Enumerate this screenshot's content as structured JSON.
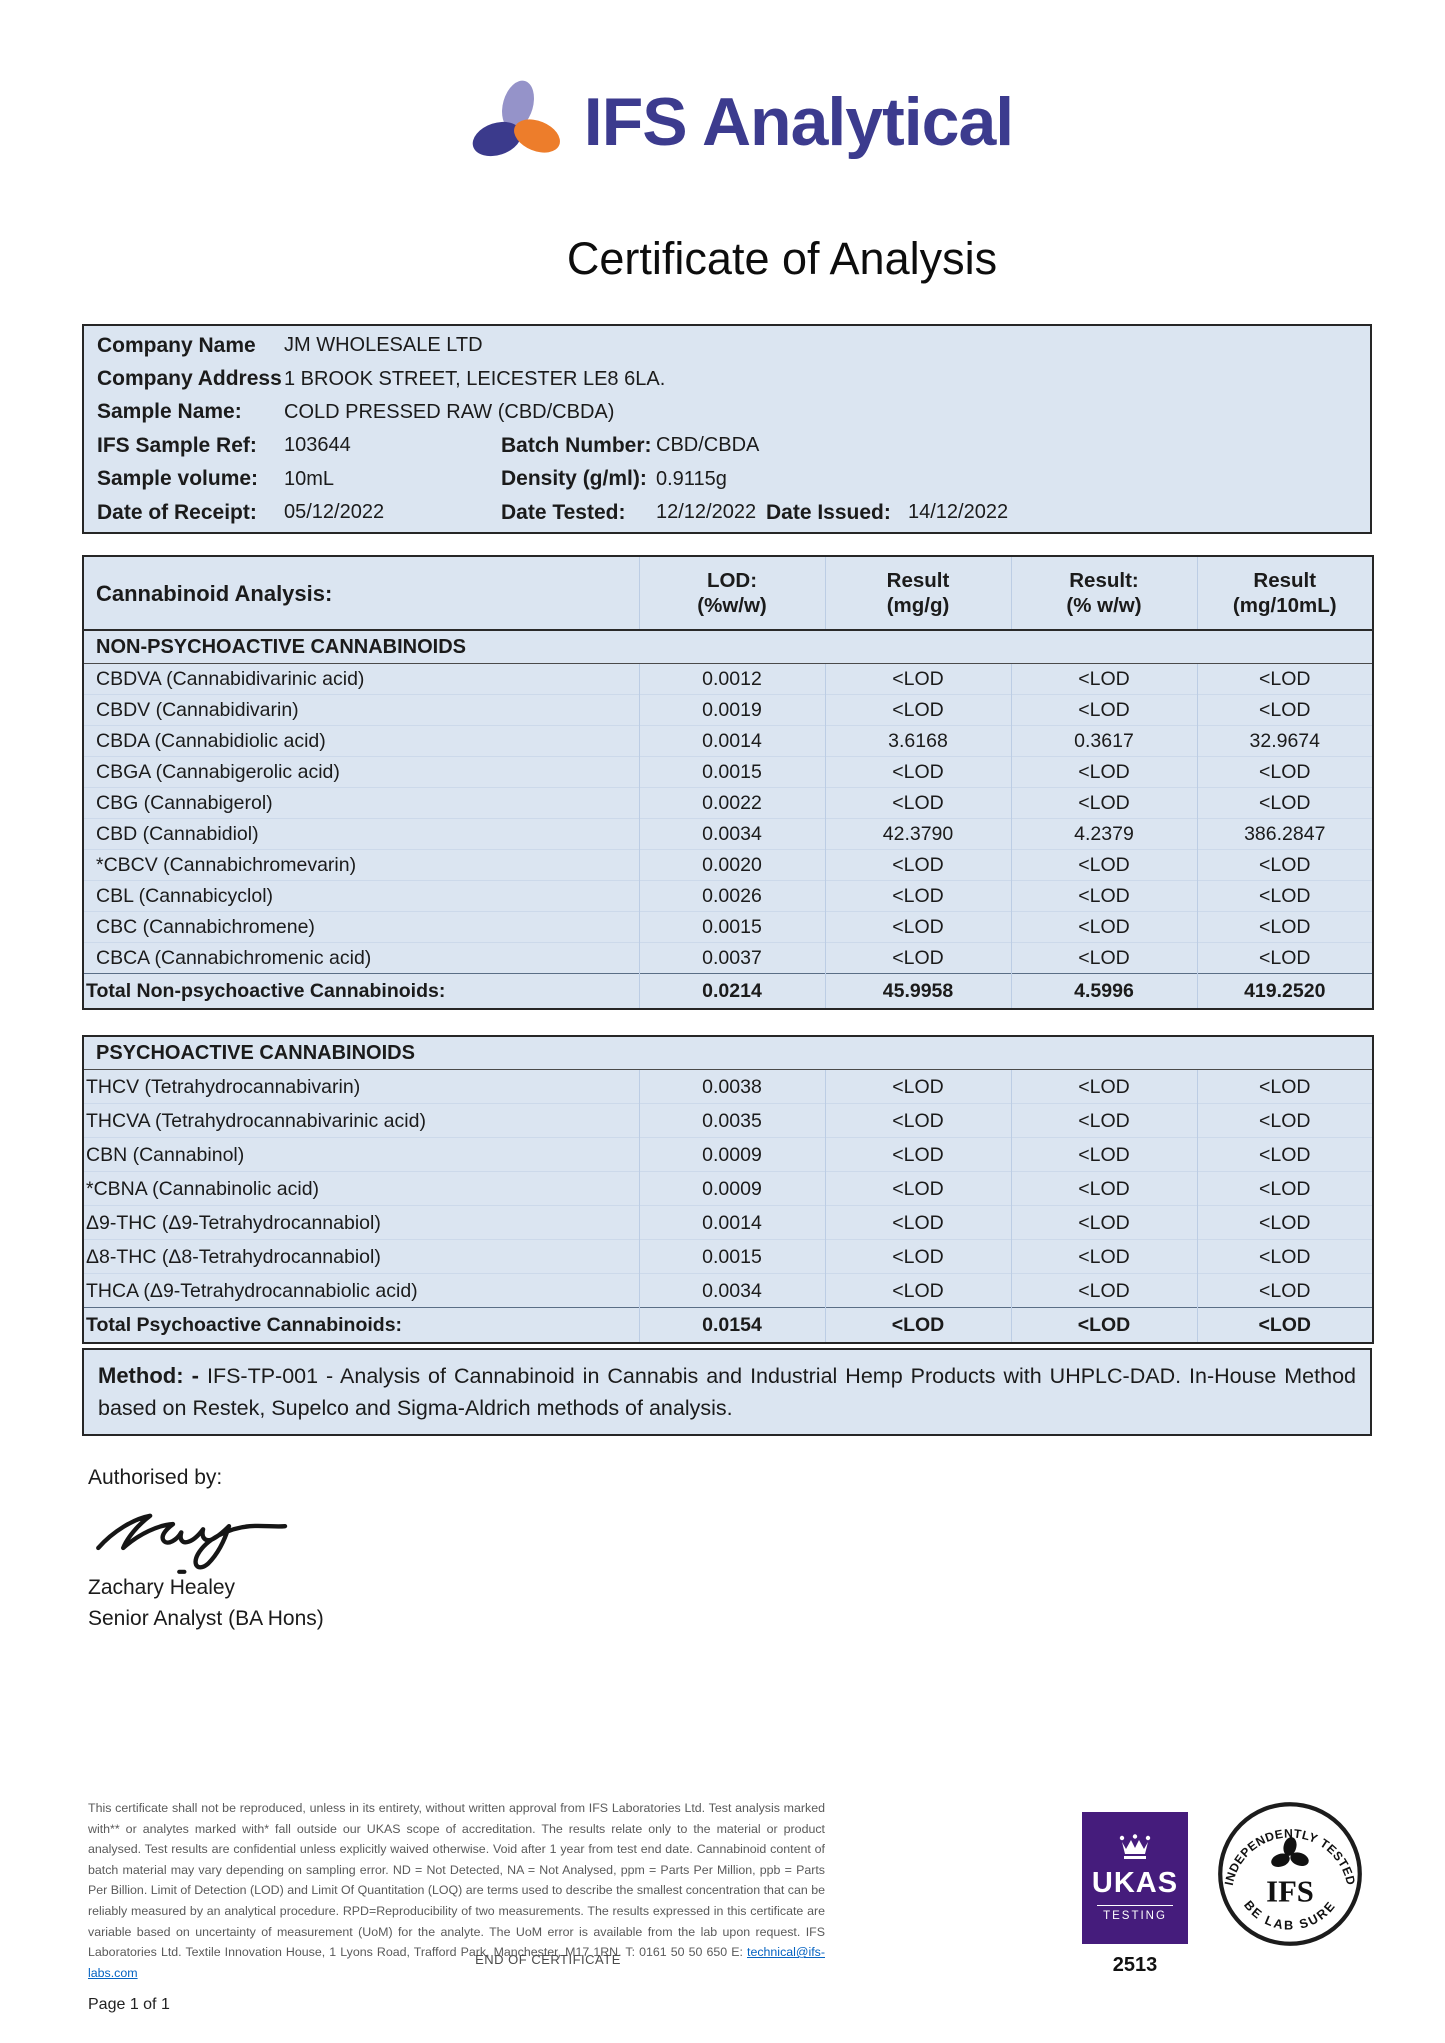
{
  "logo": {
    "brand": "IFS Analytical",
    "colors": {
      "purple_light": "#9593c9",
      "blue_dark": "#3b3a8c",
      "orange": "#ed7d2b",
      "text": "#3c3b8e"
    }
  },
  "page": {
    "title": "Certificate of Analysis"
  },
  "info": {
    "rows": [
      {
        "label": "Company Name",
        "value": "JM WHOLESALE LTD"
      },
      {
        "label": "Company Address",
        "value": "1 BROOK STREET, LEICESTER LE8 6LA."
      },
      {
        "label": "Sample Name:",
        "value": "COLD PRESSED RAW (CBD/CBDA)"
      }
    ],
    "row4": {
      "l1": "IFS Sample Ref:",
      "v1": "103644",
      "l2": "Batch Number:",
      "v2": "CBD/CBDA"
    },
    "row5": {
      "l1": "Sample volume:",
      "v1": "10mL",
      "l2": "Density (g/ml):",
      "v2": "0.9115g"
    },
    "row6": {
      "l1": "Date of Receipt:",
      "v1": "05/12/2022",
      "l2": "Date Tested:",
      "v2": "12/12/2022",
      "l3": "Date Issued:",
      "v3": "14/12/2022"
    }
  },
  "analysis": {
    "title": "Cannabinoid Analysis:",
    "cols": [
      {
        "line1": "LOD:",
        "line2": "(%w/w)"
      },
      {
        "line1": "Result",
        "line2": "(mg/g)"
      },
      {
        "line1": "Result:",
        "line2": "(% w/w)"
      },
      {
        "line1": "Result",
        "line2": "(mg/10mL)"
      }
    ],
    "nonpsych": {
      "section": "NON-PSYCHOACTIVE CANNABINOIDS",
      "rows": [
        {
          "name": "CBDVA (Cannabidivarinic acid)",
          "lod": "0.0012",
          "mgg": "<LOD",
          "pww": "<LOD",
          "mg10": "<LOD",
          "total": false
        },
        {
          "name": "CBDV (Cannabidivarin)",
          "lod": "0.0019",
          "mgg": "<LOD",
          "pww": "<LOD",
          "mg10": "<LOD",
          "total": false
        },
        {
          "name": "CBDA (Cannabidiolic acid)",
          "lod": "0.0014",
          "mgg": "3.6168",
          "pww": "0.3617",
          "mg10": "32.9674",
          "total": false
        },
        {
          "name": "CBGA (Cannabigerolic acid)",
          "lod": "0.0015",
          "mgg": "<LOD",
          "pww": "<LOD",
          "mg10": "<LOD",
          "total": false
        },
        {
          "name": "CBG (Cannabigerol)",
          "lod": "0.0022",
          "mgg": "<LOD",
          "pww": "<LOD",
          "mg10": "<LOD",
          "total": false
        },
        {
          "name": "CBD (Cannabidiol)",
          "lod": "0.0034",
          "mgg": "42.3790",
          "pww": "4.2379",
          "mg10": "386.2847",
          "total": false
        },
        {
          "name": "*CBCV (Cannabichromevarin)",
          "lod": "0.0020",
          "mgg": "<LOD",
          "pww": "<LOD",
          "mg10": "<LOD",
          "total": false
        },
        {
          "name": "CBL (Cannabicyclol)",
          "lod": "0.0026",
          "mgg": "<LOD",
          "pww": "<LOD",
          "mg10": "<LOD",
          "total": false
        },
        {
          "name": "CBC (Cannabichromene)",
          "lod": "0.0015",
          "mgg": "<LOD",
          "pww": "<LOD",
          "mg10": "<LOD",
          "total": false
        },
        {
          "name": "CBCA (Cannabichromenic acid)",
          "lod": "0.0037",
          "mgg": "<LOD",
          "pww": "<LOD",
          "mg10": "<LOD",
          "total": false
        },
        {
          "name": "Total Non-psychoactive Cannabinoids:",
          "lod": "0.0214",
          "mgg": "45.9958",
          "pww": "4.5996",
          "mg10": "419.2520",
          "total": true
        }
      ]
    },
    "psych": {
      "section": "PSYCHOACTIVE CANNABINOIDS",
      "rows": [
        {
          "name": "THCV (Tetrahydrocannabivarin)",
          "lod": "0.0038",
          "mgg": "<LOD",
          "pww": "<LOD",
          "mg10": "<LOD",
          "total": false
        },
        {
          "name": "THCVA (Tetrahydrocannabivarinic acid)",
          "lod": "0.0035",
          "mgg": "<LOD",
          "pww": "<LOD",
          "mg10": "<LOD",
          "total": false
        },
        {
          "name": "CBN (Cannabinol)",
          "lod": "0.0009",
          "mgg": "<LOD",
          "pww": "<LOD",
          "mg10": "<LOD",
          "total": false
        },
        {
          "name": "*CBNA (Cannabinolic acid)",
          "lod": "0.0009",
          "mgg": "<LOD",
          "pww": "<LOD",
          "mg10": "<LOD",
          "total": false
        },
        {
          "name": "Δ9-THC (Δ9-Tetrahydrocannabiol)",
          "lod": "0.0014",
          "mgg": "<LOD",
          "pww": "<LOD",
          "mg10": "<LOD",
          "total": false
        },
        {
          "name": "Δ8-THC (Δ8-Tetrahydrocannabiol)",
          "lod": "0.0015",
          "mgg": "<LOD",
          "pww": "<LOD",
          "mg10": "<LOD",
          "total": false
        },
        {
          "name": "THCA (Δ9-Tetrahydrocannabiolic acid)",
          "lod": "0.0034",
          "mgg": "<LOD",
          "pww": "<LOD",
          "mg10": "<LOD",
          "total": false
        },
        {
          "name": "Total Psychoactive Cannabinoids:",
          "lod": "0.0154",
          "mgg": "<LOD",
          "pww": "<LOD",
          "mg10": "<LOD",
          "total": true
        }
      ]
    }
  },
  "method": {
    "label": "Method: -",
    "text": "IFS-TP-001 - Analysis of Cannabinoid in Cannabis and Industrial Hemp Products with UHPLC-DAD. In-House Method based on Restek, Supelco and Sigma-Aldrich methods of analysis."
  },
  "signature": {
    "heading": "Authorised by:",
    "name": "Zachary Healey",
    "title": "Senior Analyst (BA Hons)"
  },
  "footer": {
    "disclaimer": "This certificate shall not be reproduced, unless in its entirety, without written approval from IFS Laboratories Ltd. Test analysis marked with** or analytes marked with* fall outside our UKAS scope of accreditation.  The results relate only to the material or product analysed. Test results are confidential unless explicitly waived otherwise. Void after 1 year from test end date. Cannabinoid content of batch material may vary depending on sampling error. ND = Not Detected, NA = Not Analysed, ppm = Parts Per Million, ppb = Parts Per Billion. Limit of Detection (LOD) and Limit Of Quantitation (LOQ) are terms used to describe the smallest concentration that can be reliably measured by an analytical procedure. RPD=Reproducibility of two measurements. The results expressed in this certificate are variable based on uncertainty of measurement (UoM) for the analyte. The UoM error is available from the lab upon request. IFS Laboratories Ltd. Textile Innovation House, 1 Lyons Road, Trafford Park, Manchester, M17 1RN. T: 0161 50 50 650 E: ",
    "email": "technical@ifs-labs.com",
    "end": "END OF CERTIFICATE",
    "page": "Page 1 of 1",
    "ukas": {
      "name": "UKAS",
      "sub": "TESTING",
      "number": "2513",
      "color": "#451c7c"
    },
    "stamp": {
      "top": "INDEPENDENTLY TESTED",
      "bottom": "BE LAB SURE",
      "center": "IFS"
    }
  }
}
